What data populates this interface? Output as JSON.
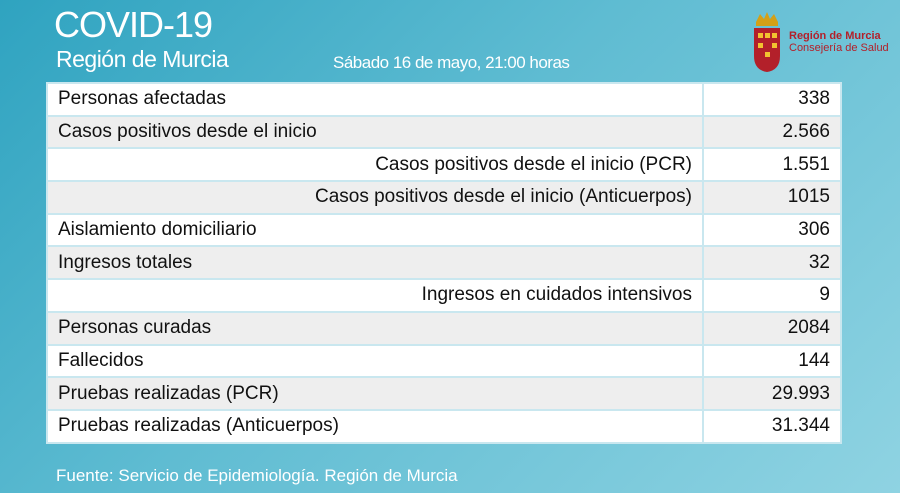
{
  "header": {
    "title": "COVID-19",
    "subtitle": "Región de Murcia",
    "date": "Sábado 16 de mayo, 21:00 horas",
    "logo": [
      "Región de Murcia",
      "Consejería de Salud"
    ]
  },
  "table": {
    "rows": [
      [
        "Personas afectadas",
        "338"
      ],
      [
        "Casos positivos desde el inicio",
        "2.566"
      ],
      [
        "Casos positivos desde el inicio (PCR)",
        "1.551"
      ],
      [
        "Casos positivos desde el inicio (Anticuerpos)",
        "1015"
      ],
      [
        "Aislamiento domiciliario",
        "306"
      ],
      [
        "Ingresos totales",
        "32"
      ],
      [
        "Ingresos en cuidados intensivos",
        "9"
      ],
      [
        "Personas curadas",
        "2084"
      ],
      [
        "Fallecidos",
        "144"
      ],
      [
        "Pruebas realizadas (PCR)",
        "29.993"
      ],
      [
        "Pruebas realizadas (Anticuerpos)",
        "31.344"
      ]
    ]
  },
  "footer": "Fuente: Servicio de Epidemiología. Región de Murcia"
}
